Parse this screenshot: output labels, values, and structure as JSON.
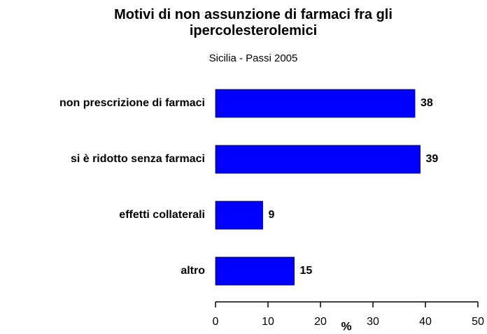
{
  "chart_data": {
    "type": "hbar",
    "title": "Motivi di non assunzione di farmaci fra gli ipercolesterolemici",
    "subtitle": "Sicilia - Passi 2005",
    "categories": [
      "non prescrizione di farmaci",
      "si è ridotto senza farmaci",
      "effetti collaterali",
      "altro"
    ],
    "values": [
      38,
      39,
      9,
      15
    ],
    "color": "#0000ff",
    "x_label": "%",
    "xlim": [
      0,
      50
    ],
    "xticks": [
      0,
      10,
      20,
      30,
      40,
      50
    ],
    "grid": false
  }
}
